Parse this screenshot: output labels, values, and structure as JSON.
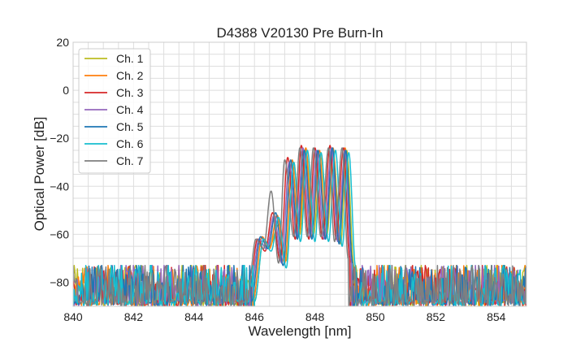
{
  "chart_data": {
    "type": "line",
    "title": "D4388 V20130 Pre Burn-In",
    "xlabel": "Wavelength [nm]",
    "ylabel": "Optical Power [dB]",
    "xlim": [
      840,
      855
    ],
    "ylim": [
      -90,
      20
    ],
    "x_ticks": [
      840,
      842,
      844,
      846,
      848,
      850,
      852,
      854
    ],
    "y_ticks": [
      20,
      0,
      -20,
      -40,
      -60,
      -80
    ],
    "grid": true,
    "legend_position": "top-left",
    "noise_floor": {
      "mean": -82,
      "min": -90,
      "max": -73
    },
    "series": [
      {
        "name": "Ch. 1",
        "color": "#bcbd22",
        "x": [
          846.0,
          846.3,
          846.5,
          846.8,
          847.05,
          847.3,
          847.5,
          847.7,
          847.95,
          848.2,
          848.4,
          848.6,
          848.85,
          849.05,
          849.3
        ],
        "y": [
          -88,
          -62,
          -65,
          -56,
          -71,
          -30,
          -60,
          -25,
          -60,
          -26,
          -60,
          -25,
          -64,
          -25,
          -74
        ]
      },
      {
        "name": "Ch. 2",
        "color": "#ff7f0e",
        "x": [
          845.95,
          846.25,
          846.5,
          846.75,
          847.0,
          847.25,
          847.45,
          847.7,
          847.9,
          848.15,
          848.35,
          848.6,
          848.8,
          849.0,
          849.2
        ],
        "y": [
          -88,
          -61,
          -66,
          -52,
          -72,
          -29,
          -61,
          -24,
          -61,
          -25,
          -61,
          -24,
          -63,
          -24,
          -72
        ]
      },
      {
        "name": "Ch. 3",
        "color": "#d62728",
        "x": [
          845.8,
          846.1,
          846.35,
          846.6,
          846.85,
          847.1,
          847.35,
          847.55,
          847.8,
          848.0,
          848.25,
          848.5,
          848.7,
          848.95,
          849.15
        ],
        "y": [
          -88,
          -62,
          -67,
          -51,
          -71,
          -28,
          -62,
          -23,
          -62,
          -24,
          -62,
          -23,
          -62,
          -24,
          -70
        ]
      },
      {
        "name": "Ch. 4",
        "color": "#9467bd",
        "x": [
          845.85,
          846.15,
          846.4,
          846.65,
          846.9,
          847.15,
          847.4,
          847.6,
          847.85,
          848.05,
          848.3,
          848.55,
          848.75,
          849.0,
          849.2
        ],
        "y": [
          -88,
          -62,
          -66,
          -52,
          -72,
          -30,
          -61,
          -24,
          -61,
          -25,
          -62,
          -24,
          -63,
          -25,
          -71
        ]
      },
      {
        "name": "Ch. 5",
        "color": "#1f77b4",
        "x": [
          845.9,
          846.2,
          846.45,
          846.7,
          846.95,
          847.2,
          847.42,
          847.65,
          847.9,
          848.1,
          848.35,
          848.58,
          848.8,
          849.02,
          849.25
        ],
        "y": [
          -88,
          -61,
          -66,
          -51,
          -73,
          -29,
          -62,
          -25,
          -62,
          -25,
          -62,
          -24,
          -64,
          -25,
          -72
        ]
      },
      {
        "name": "Ch. 6",
        "color": "#17becf",
        "x": [
          846.0,
          846.3,
          846.55,
          846.8,
          847.05,
          847.3,
          847.52,
          847.75,
          848.0,
          848.2,
          848.45,
          848.68,
          848.9,
          849.12,
          849.35
        ],
        "y": [
          -88,
          -62,
          -67,
          -53,
          -74,
          -30,
          -63,
          -25,
          -63,
          -26,
          -63,
          -25,
          -65,
          -26,
          -74
        ]
      },
      {
        "name": "Ch. 7",
        "color": "#7f7f7f",
        "x": [
          845.75,
          846.05,
          846.3,
          846.55,
          846.8,
          847.0,
          847.3,
          847.5,
          847.75,
          847.95,
          848.2,
          848.45,
          848.65,
          848.9,
          849.1
        ],
        "y": [
          -88,
          -62,
          -66,
          -42,
          -72,
          -29,
          -61,
          -24,
          -61,
          -24,
          -61,
          -24,
          -63,
          -24,
          -70
        ]
      }
    ]
  }
}
